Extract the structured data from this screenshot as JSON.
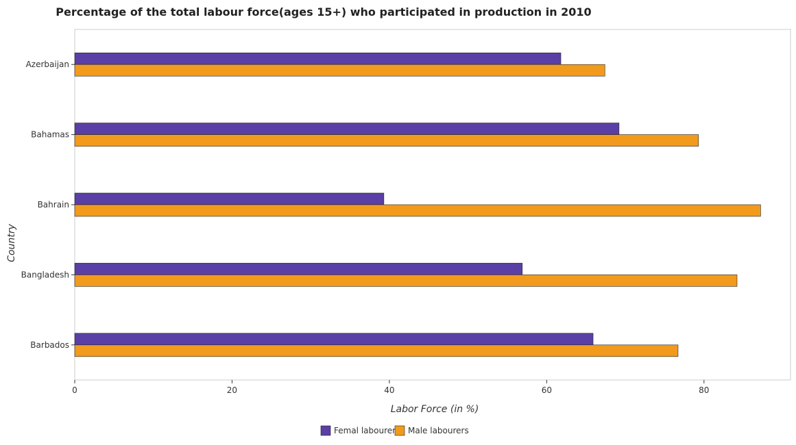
{
  "chart_data": {
    "type": "bar",
    "orientation": "horizontal",
    "title": "Percentage of the total labour force(ages 15+) who participated in production in 2010",
    "xlabel": "Labor Force (in %)",
    "ylabel": "Country",
    "xlim": [
      0,
      91
    ],
    "xticks": [
      "0",
      "20",
      "40",
      "60",
      "80"
    ],
    "categories": [
      "Azerbaijan",
      "Bahamas",
      "Bahrain",
      "Bangladesh",
      "Barbados"
    ],
    "series": [
      {
        "name": "Femal labourers",
        "color": "#5a3fa6",
        "values": [
          61.8,
          69.2,
          39.3,
          56.9,
          65.9
        ]
      },
      {
        "name": "Male labourers",
        "color": "#f29a1c",
        "values": [
          67.4,
          79.3,
          87.2,
          84.2,
          76.7
        ]
      }
    ],
    "legend": "bottom-center",
    "grid": false
  }
}
